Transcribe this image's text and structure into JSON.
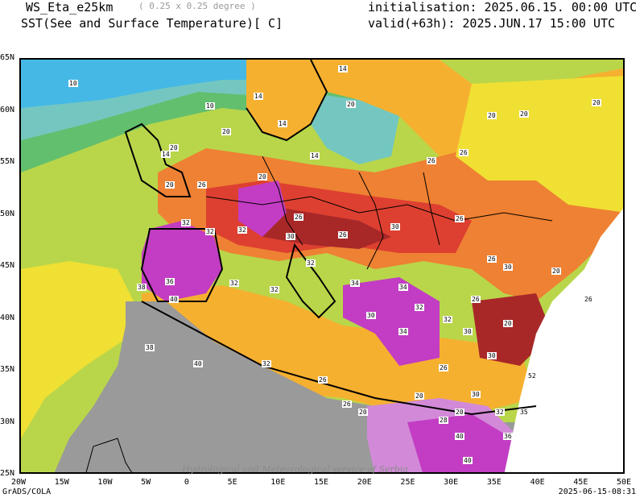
{
  "header": {
    "model": "WS_Eta_e25km",
    "resolution": "( 0.25 x 0.25 degree )",
    "field": "SST(See and Surface Temperature)[ C]",
    "initialisation": "initialisation: 2025.06.15. 00:00 UTC",
    "valid": "valid(+63h): 2025.JUN.17 15:00 UTC"
  },
  "axes": {
    "x_ticks": [
      "20W",
      "15W",
      "10W",
      "5W",
      "0",
      "5E",
      "10E",
      "15E",
      "20E",
      "25E",
      "30E",
      "35E",
      "40E",
      "45E",
      "50E"
    ],
    "y_ticks": [
      "65N",
      "60N",
      "55N",
      "50N",
      "45N",
      "40N",
      "35N",
      "30N",
      "25N"
    ]
  },
  "contour_labels": [
    "10",
    "10",
    "14",
    "14",
    "20",
    "20",
    "20",
    "14",
    "14",
    "20",
    "26",
    "26",
    "26",
    "20",
    "20",
    "20",
    "14",
    "20",
    "26",
    "32",
    "32",
    "32",
    "30",
    "26",
    "32",
    "30",
    "26",
    "36",
    "32",
    "32",
    "38",
    "40",
    "34",
    "32",
    "30",
    "26",
    "20",
    "26",
    "34",
    "30",
    "26",
    "32",
    "30",
    "34",
    "38",
    "40",
    "32",
    "26",
    "20",
    "30",
    "26",
    "20",
    "20",
    "28",
    "32",
    "30",
    "40",
    "36",
    "40",
    "52",
    "35",
    "30",
    "26",
    "20"
  ],
  "watermark": "Hydrological and Meteorological service of Serbia",
  "footer": {
    "left": "GrADS/COLA",
    "right": "2025-06-15-08:31"
  },
  "colors": {
    "sea_cold": "#45b8e6",
    "sea_cool": "#74c7c0",
    "sea_mild": "#62bf6e",
    "sea_warm": "#b9d64a",
    "yellow": "#f0e033",
    "orange": "#f6b030",
    "dark_orange": "#ee8133",
    "red": "#dd4030",
    "dark_red": "#a82828",
    "magenta": "#c23dc3",
    "light_magenta": "#d28ad8",
    "grey": "#9a9a9a"
  }
}
